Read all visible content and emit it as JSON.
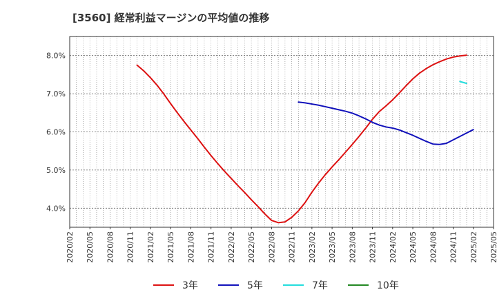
{
  "chart_data": {
    "type": "line",
    "title": "[3560]  経常利益マージンの平均値の推移",
    "xlabel": "",
    "ylabel": "",
    "x_ticks": [
      "2020/02",
      "2020/05",
      "2020/08",
      "2020/11",
      "2021/02",
      "2021/05",
      "2021/08",
      "2021/11",
      "2022/02",
      "2022/05",
      "2022/08",
      "2022/11",
      "2023/02",
      "2023/05",
      "2023/08",
      "2023/11",
      "2024/02",
      "2024/05",
      "2024/08",
      "2024/11",
      "2025/02",
      "2025/05"
    ],
    "y_ticks": [
      "4.0%",
      "5.0%",
      "6.0%",
      "7.0%",
      "8.0%"
    ],
    "ylim": [
      3.5,
      8.5
    ],
    "xlim": [
      "2020/02",
      "2025/05"
    ],
    "grid": true,
    "legend_position": "bottom",
    "series": [
      {
        "name": "3年",
        "color": "#dd1111",
        "points": [
          [
            "2020/12",
            7.75
          ],
          [
            "2021/01",
            7.6
          ],
          [
            "2021/02",
            7.42
          ],
          [
            "2021/03",
            7.22
          ],
          [
            "2021/04",
            6.99
          ],
          [
            "2021/05",
            6.74
          ],
          [
            "2021/06",
            6.5
          ],
          [
            "2021/07",
            6.27
          ],
          [
            "2021/08",
            6.05
          ],
          [
            "2021/09",
            5.83
          ],
          [
            "2021/10",
            5.6
          ],
          [
            "2021/11",
            5.38
          ],
          [
            "2021/12",
            5.17
          ],
          [
            "2022/01",
            4.97
          ],
          [
            "2022/02",
            4.78
          ],
          [
            "2022/03",
            4.59
          ],
          [
            "2022/04",
            4.41
          ],
          [
            "2022/05",
            4.22
          ],
          [
            "2022/06",
            4.04
          ],
          [
            "2022/07",
            3.85
          ],
          [
            "2022/08",
            3.68
          ],
          [
            "2022/09",
            3.62
          ],
          [
            "2022/10",
            3.64
          ],
          [
            "2022/11",
            3.76
          ],
          [
            "2022/12",
            3.93
          ],
          [
            "2023/01",
            4.15
          ],
          [
            "2023/02",
            4.42
          ],
          [
            "2023/03",
            4.66
          ],
          [
            "2023/04",
            4.88
          ],
          [
            "2023/05",
            5.08
          ],
          [
            "2023/06",
            5.27
          ],
          [
            "2023/07",
            5.47
          ],
          [
            "2023/08",
            5.67
          ],
          [
            "2023/09",
            5.88
          ],
          [
            "2023/10",
            6.1
          ],
          [
            "2023/11",
            6.33
          ],
          [
            "2023/12",
            6.53
          ],
          [
            "2024/01",
            6.68
          ],
          [
            "2024/02",
            6.84
          ],
          [
            "2024/03",
            7.02
          ],
          [
            "2024/04",
            7.21
          ],
          [
            "2024/05",
            7.39
          ],
          [
            "2024/06",
            7.54
          ],
          [
            "2024/07",
            7.66
          ],
          [
            "2024/08",
            7.76
          ],
          [
            "2024/09",
            7.84
          ],
          [
            "2024/10",
            7.91
          ],
          [
            "2024/11",
            7.96
          ],
          [
            "2024/12",
            7.99
          ],
          [
            "2025/01",
            8.01
          ]
        ]
      },
      {
        "name": "5年",
        "color": "#1111bb",
        "points": [
          [
            "2022/12",
            6.78
          ],
          [
            "2023/01",
            6.76
          ],
          [
            "2023/02",
            6.73
          ],
          [
            "2023/03",
            6.7
          ],
          [
            "2023/04",
            6.66
          ],
          [
            "2023/05",
            6.62
          ],
          [
            "2023/06",
            6.58
          ],
          [
            "2023/07",
            6.54
          ],
          [
            "2023/08",
            6.49
          ],
          [
            "2023/09",
            6.42
          ],
          [
            "2023/10",
            6.34
          ],
          [
            "2023/11",
            6.25
          ],
          [
            "2023/12",
            6.18
          ],
          [
            "2024/01",
            6.13
          ],
          [
            "2024/02",
            6.1
          ],
          [
            "2024/03",
            6.05
          ],
          [
            "2024/04",
            5.98
          ],
          [
            "2024/05",
            5.91
          ],
          [
            "2024/06",
            5.83
          ],
          [
            "2024/07",
            5.75
          ],
          [
            "2024/08",
            5.68
          ],
          [
            "2024/09",
            5.67
          ],
          [
            "2024/10",
            5.7
          ],
          [
            "2024/11",
            5.79
          ],
          [
            "2024/12",
            5.88
          ],
          [
            "2025/01",
            5.97
          ],
          [
            "2025/02",
            6.06
          ]
        ]
      },
      {
        "name": "7年",
        "color": "#22dddd",
        "points": [
          [
            "2024/12",
            7.32
          ],
          [
            "2025/01",
            7.27
          ]
        ]
      },
      {
        "name": "10年",
        "color": "#228822",
        "points": []
      }
    ]
  }
}
